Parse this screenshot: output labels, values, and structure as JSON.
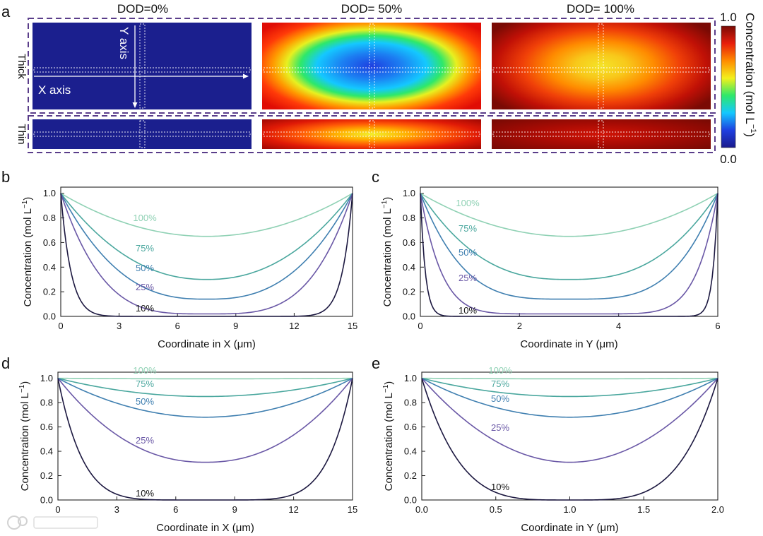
{
  "panel_a": {
    "letter": "a",
    "columns": [
      "DOD=0%",
      "DOD= 50%",
      "DOD= 100%"
    ],
    "rows": [
      "Thick",
      "Thin"
    ],
    "axis_x": "X axis",
    "axis_y": "Y axis",
    "colorbar": {
      "label_main": "Concentration (mol L",
      "label_sup": "−1",
      "label_close": ")",
      "max": "1.0",
      "min": "0.0",
      "colors": [
        "#1a1a8c",
        "#1e3fe0",
        "#14c8ff",
        "#2ee86a",
        "#f3f01c",
        "#ff8c00",
        "#e81e0c",
        "#7a0a04"
      ]
    }
  },
  "chart_data": [
    {
      "id": "b",
      "letter": "b",
      "type": "line",
      "xlabel": "Coordinate in X (μm)",
      "ylabel_main": "Concentration (mol L",
      "ylabel_sup": "−1",
      "ylabel_close": ")",
      "xlim": [
        0,
        15
      ],
      "ylim": [
        0,
        1.05
      ],
      "xticks": [
        0,
        3,
        6,
        9,
        12,
        15
      ],
      "xtick_labels": [
        "0",
        "3",
        "6",
        "9",
        "12",
        "15"
      ],
      "yticks": [
        0,
        0.2,
        0.4,
        0.6,
        0.8,
        1.0
      ],
      "ytick_labels": [
        "0.0",
        "0.2",
        "0.4",
        "0.6",
        "0.8",
        "1.0"
      ],
      "center": 7.5,
      "series": [
        {
          "name": "100%",
          "min": 0.65,
          "shape": 2,
          "color": "#8fd1b4"
        },
        {
          "name": "75%",
          "min": 0.3,
          "shape": 2.2,
          "color": "#4aa79e"
        },
        {
          "name": "50%",
          "min": 0.14,
          "shape": 2.6,
          "color": "#3f7fb0"
        },
        {
          "name": "25%",
          "min": 0.02,
          "shape": 3.6,
          "color": "#6a58a6"
        },
        {
          "name": "10%",
          "min": 0.0,
          "shape": 14,
          "color": "#1c1840"
        }
      ]
    },
    {
      "id": "c",
      "letter": "c",
      "type": "line",
      "xlabel": "Coordinate in Y (μm)",
      "ylabel_main": "Concentration (mol L",
      "ylabel_sup": "−1",
      "ylabel_close": ")",
      "xlim": [
        0,
        6
      ],
      "ylim": [
        0,
        1.05
      ],
      "xticks": [
        0,
        2,
        4,
        6
      ],
      "xtick_labels": [
        "0",
        "2",
        "4",
        "6"
      ],
      "yticks": [
        0,
        0.2,
        0.4,
        0.6,
        0.8,
        1.0
      ],
      "ytick_labels": [
        "0.0",
        "0.2",
        "0.4",
        "0.6",
        "0.8",
        "1.0"
      ],
      "center": 3,
      "series": [
        {
          "name": "100%",
          "min": 0.65,
          "shape": 2,
          "color": "#8fd1b4"
        },
        {
          "name": "75%",
          "min": 0.3,
          "shape": 2.6,
          "color": "#4aa79e"
        },
        {
          "name": "50%",
          "min": 0.14,
          "shape": 3.6,
          "color": "#3f7fb0"
        },
        {
          "name": "25%",
          "min": 0.02,
          "shape": 7,
          "color": "#6a58a6"
        },
        {
          "name": "10%",
          "min": 0.0,
          "shape": 30,
          "color": "#1c1840"
        }
      ]
    },
    {
      "id": "d",
      "letter": "d",
      "type": "line",
      "xlabel": "Coordinate in X (μm)",
      "ylabel_main": "Concentration (mol L",
      "ylabel_sup": "−1",
      "ylabel_close": ")",
      "xlim": [
        0,
        15
      ],
      "ylim": [
        0,
        1.05
      ],
      "xticks": [
        0,
        3,
        6,
        9,
        12,
        15
      ],
      "xtick_labels": [
        "0",
        "3",
        "6",
        "9",
        "12",
        "15"
      ],
      "yticks": [
        0,
        0.2,
        0.4,
        0.6,
        0.8,
        1.0
      ],
      "ytick_labels": [
        "0.0",
        "0.2",
        "0.4",
        "0.6",
        "0.8",
        "1.0"
      ],
      "center": 7.5,
      "series": [
        {
          "name": "100%",
          "min": 0.995,
          "shape": 2,
          "color": "#8fd1b4"
        },
        {
          "name": "75%",
          "min": 0.85,
          "shape": 2,
          "color": "#4aa79e"
        },
        {
          "name": "50%",
          "min": 0.68,
          "shape": 2,
          "color": "#3f7fb0"
        },
        {
          "name": "25%",
          "min": 0.31,
          "shape": 2.2,
          "color": "#6a58a6"
        },
        {
          "name": "10%",
          "min": 0.0,
          "shape": 6,
          "color": "#1c1840"
        }
      ]
    },
    {
      "id": "e",
      "letter": "e",
      "type": "line",
      "xlabel": "Coordinate in Y (μm)",
      "ylabel_main": "Concentration (mol L",
      "ylabel_sup": "−1",
      "ylabel_close": ")",
      "xlim": [
        0,
        2.0
      ],
      "ylim": [
        0,
        1.05
      ],
      "xticks": [
        0,
        0.5,
        1.0,
        1.5,
        2.0
      ],
      "xtick_labels": [
        "0.0",
        "0.5",
        "1.0",
        "1.5",
        "2.0"
      ],
      "yticks": [
        0,
        0.2,
        0.4,
        0.6,
        0.8,
        1.0
      ],
      "ytick_labels": [
        "0.0",
        "0.2",
        "0.4",
        "0.6",
        "0.8",
        "1.0"
      ],
      "center": 1,
      "series": [
        {
          "name": "100%",
          "min": 0.995,
          "shape": 2,
          "color": "#8fd1b4"
        },
        {
          "name": "75%",
          "min": 0.85,
          "shape": 2,
          "color": "#4aa79e"
        },
        {
          "name": "50%",
          "min": 0.68,
          "shape": 2,
          "color": "#3f7fb0"
        },
        {
          "name": "25%",
          "min": 0.31,
          "shape": 2,
          "color": "#6a58a6"
        },
        {
          "name": "10%",
          "min": 0.0,
          "shape": 4,
          "color": "#1c1840"
        }
      ]
    }
  ]
}
